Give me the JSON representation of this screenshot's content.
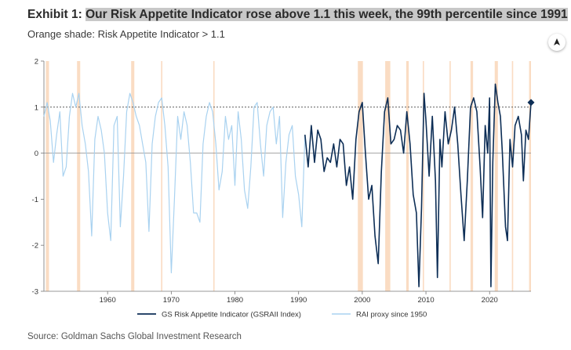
{
  "header": {
    "title_prefix": "Exhibit 1: ",
    "title_highlight": "Our Risk Appetite Indicator rose above 1.1 this week, the 99th percentile since 1991",
    "subtitle": "Orange shade: Risk Appetite Indicator > 1.1"
  },
  "share_button": {
    "icon": "share-icon"
  },
  "footer": {
    "source": "Source: Goldman Sachs Global Investment Research"
  },
  "chart_data": {
    "type": "line",
    "title": "",
    "xlabel": "",
    "ylabel": "",
    "xlim": [
      1950,
      2026.5
    ],
    "ylim": [
      -3,
      2
    ],
    "x_ticks": [
      1960,
      1970,
      1980,
      1990,
      2000,
      2010,
      2020
    ],
    "y_ticks": [
      2,
      1,
      0,
      -1,
      -2,
      -3
    ],
    "reference_lines": [
      1,
      0
    ],
    "grid": false,
    "legend_position": "bottom",
    "shaded_periods_label": "Risk Appetite Indicator > 1.1",
    "shaded_periods": [
      [
        1950.3,
        1950.8
      ],
      [
        1955.2,
        1955.7
      ],
      [
        1963.7,
        1964.2
      ],
      [
        1968.4,
        1968.6
      ],
      [
        1976.6,
        1976.8
      ],
      [
        1999.3,
        2000.1
      ],
      [
        2003.6,
        2004.4
      ],
      [
        2006.9,
        2007.3
      ],
      [
        2009.5,
        2009.7
      ],
      [
        2013.7,
        2013.9
      ],
      [
        2017.0,
        2017.4
      ],
      [
        2020.8,
        2021.3
      ],
      [
        2023.5,
        2023.7
      ],
      [
        2026.2,
        2026.5
      ]
    ],
    "series": [
      {
        "name": "GS Risk Appetite Indicator (GSRAII Index)",
        "color": "#0d2e56",
        "x": [
          1991.0,
          1991.5,
          1992.0,
          1992.5,
          1993.0,
          1993.5,
          1994.0,
          1994.5,
          1995.0,
          1995.5,
          1996.0,
          1996.5,
          1997.0,
          1997.5,
          1998.0,
          1998.5,
          1999.0,
          1999.5,
          2000.0,
          2000.5,
          2001.0,
          2001.5,
          2002.0,
          2002.5,
          2003.0,
          2003.5,
          2004.0,
          2004.5,
          2005.0,
          2005.5,
          2006.0,
          2006.5,
          2007.0,
          2007.5,
          2008.0,
          2008.5,
          2008.9,
          2009.3,
          2009.7,
          2010.0,
          2010.5,
          2011.0,
          2011.5,
          2011.8,
          2012.2,
          2012.5,
          2013.0,
          2013.5,
          2014.0,
          2014.5,
          2015.0,
          2015.5,
          2016.0,
          2016.5,
          2017.0,
          2017.5,
          2018.0,
          2018.5,
          2018.9,
          2019.3,
          2019.7,
          2020.0,
          2020.2,
          2020.5,
          2020.9,
          2021.3,
          2021.7,
          2022.0,
          2022.5,
          2022.8,
          2023.2,
          2023.6,
          2024.0,
          2024.5,
          2025.0,
          2025.3,
          2025.7,
          2026.1,
          2026.5
        ],
        "y": [
          0.4,
          -0.3,
          0.6,
          -0.2,
          0.5,
          0.3,
          -0.4,
          -0.1,
          -0.2,
          0.2,
          -0.3,
          0.3,
          0.2,
          -0.7,
          -0.3,
          -1.0,
          0.3,
          0.9,
          1.1,
          0.0,
          -1.0,
          -0.7,
          -1.8,
          -2.4,
          -0.4,
          0.9,
          1.2,
          0.2,
          0.3,
          0.6,
          0.5,
          0.0,
          0.9,
          0.2,
          -0.9,
          -1.3,
          -2.9,
          -1.2,
          1.3,
          0.7,
          -0.5,
          0.8,
          -0.6,
          -2.7,
          0.3,
          -0.3,
          0.9,
          0.2,
          0.5,
          1.0,
          0.2,
          -0.9,
          -1.9,
          -0.6,
          1.0,
          1.2,
          0.9,
          -0.3,
          -1.4,
          0.6,
          0.0,
          1.2,
          -2.9,
          -0.2,
          1.5,
          1.1,
          0.8,
          0.0,
          -1.6,
          -1.9,
          0.3,
          -0.3,
          0.6,
          0.8,
          0.4,
          -0.6,
          0.5,
          0.3,
          1.1
        ]
      },
      {
        "name": "RAI proxy since 1950",
        "color": "#a9d2f0",
        "x": [
          1950.0,
          1950.5,
          1951.0,
          1951.5,
          1952.0,
          1952.5,
          1953.0,
          1953.5,
          1954.0,
          1954.5,
          1955.0,
          1955.5,
          1956.0,
          1956.5,
          1957.0,
          1957.5,
          1958.0,
          1958.5,
          1959.0,
          1959.5,
          1960.0,
          1960.5,
          1961.0,
          1961.5,
          1962.0,
          1962.5,
          1963.0,
          1963.5,
          1964.0,
          1964.5,
          1965.0,
          1965.5,
          1966.0,
          1966.5,
          1967.0,
          1967.5,
          1968.0,
          1968.5,
          1969.0,
          1969.5,
          1970.0,
          1970.5,
          1971.0,
          1971.5,
          1972.0,
          1972.5,
          1973.0,
          1973.5,
          1974.0,
          1974.5,
          1975.0,
          1975.5,
          1976.0,
          1976.5,
          1977.0,
          1977.5,
          1978.0,
          1978.5,
          1979.0,
          1979.5,
          1980.0,
          1980.5,
          1981.0,
          1981.5,
          1982.0,
          1982.5,
          1983.0,
          1983.5,
          1984.0,
          1984.5,
          1985.0,
          1985.5,
          1986.0,
          1986.5,
          1987.0,
          1987.5,
          1988.0,
          1988.5,
          1989.0,
          1989.5,
          1990.0,
          1990.5,
          1991.0
        ],
        "y": [
          0.8,
          1.1,
          0.7,
          -0.2,
          0.4,
          0.9,
          -0.5,
          -0.3,
          0.8,
          1.3,
          1.0,
          1.3,
          0.6,
          0.2,
          -0.4,
          -1.8,
          0.3,
          0.8,
          0.5,
          0.0,
          -1.3,
          -1.9,
          0.6,
          0.8,
          -1.6,
          -0.5,
          0.9,
          1.3,
          1.1,
          0.8,
          0.6,
          0.2,
          -0.2,
          -1.7,
          0.2,
          0.8,
          1.1,
          1.2,
          0.6,
          -0.3,
          -2.6,
          -1.0,
          0.8,
          0.3,
          0.9,
          0.6,
          -0.2,
          -1.3,
          -1.3,
          -1.5,
          0.2,
          0.8,
          1.1,
          0.9,
          0.2,
          -0.8,
          -0.4,
          0.8,
          0.3,
          0.6,
          -0.7,
          0.9,
          0.3,
          -0.8,
          -1.2,
          -0.3,
          1.0,
          1.1,
          0.2,
          -0.5,
          0.6,
          0.9,
          1.0,
          0.2,
          0.8,
          -1.4,
          -0.2,
          0.4,
          0.6,
          -0.5,
          -0.9,
          -1.6,
          0.4
        ]
      }
    ],
    "latest_point": {
      "x": 2026.5,
      "y": 1.1
    }
  }
}
